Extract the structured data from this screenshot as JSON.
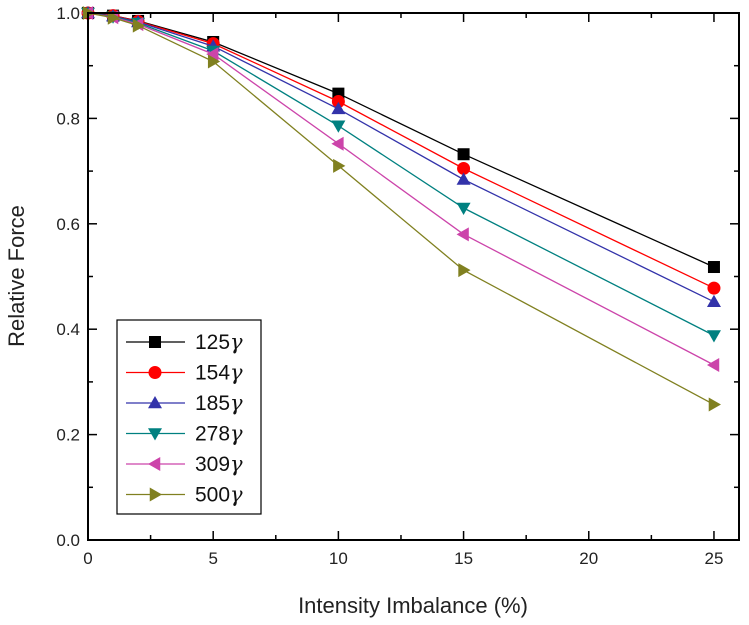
{
  "chart_data": {
    "type": "line",
    "title": "",
    "xlabel": "Intensity Imbalance (%)",
    "ylabel": "Relative Force",
    "xlim": [
      0,
      26
    ],
    "ylim": [
      0.0,
      1.0
    ],
    "xticks": [
      0,
      5,
      10,
      15,
      20,
      25
    ],
    "xtick_labels": [
      "0",
      "5",
      "10",
      "15",
      "20",
      "25"
    ],
    "yticks": [
      0.0,
      0.2,
      0.4,
      0.6,
      0.8,
      1.0
    ],
    "ytick_labels": [
      "0.0",
      "0.2",
      "0.4",
      "0.6",
      "0.8",
      "1.0"
    ],
    "grid": false,
    "legend_position": "bottom-left",
    "x": [
      0,
      1,
      2,
      5,
      10,
      15,
      25
    ],
    "series": [
      {
        "name": "125",
        "suffix": "γ",
        "color": "#000000",
        "marker": "square",
        "values": [
          1.0,
          0.995,
          0.985,
          0.945,
          0.847,
          0.732,
          0.518
        ]
      },
      {
        "name": "154",
        "suffix": "γ",
        "color": "#ff0000",
        "marker": "circle",
        "values": [
          1.0,
          0.995,
          0.984,
          0.942,
          0.832,
          0.705,
          0.478
        ]
      },
      {
        "name": "185",
        "suffix": "γ",
        "color": "#3333aa",
        "marker": "triangle-up",
        "values": [
          1.0,
          0.994,
          0.983,
          0.937,
          0.818,
          0.684,
          0.452
        ]
      },
      {
        "name": "278",
        "suffix": "γ",
        "color": "#008080",
        "marker": "triangle-down",
        "values": [
          1.0,
          0.993,
          0.981,
          0.928,
          0.786,
          0.63,
          0.388
        ]
      },
      {
        "name": "309",
        "suffix": "γ",
        "color": "#cc44aa",
        "marker": "triangle-left",
        "values": [
          1.0,
          0.992,
          0.979,
          0.922,
          0.752,
          0.58,
          0.332
        ]
      },
      {
        "name": "500",
        "suffix": "γ",
        "color": "#808020",
        "marker": "triangle-right",
        "values": [
          1.0,
          0.991,
          0.976,
          0.908,
          0.71,
          0.512,
          0.257
        ]
      }
    ]
  }
}
